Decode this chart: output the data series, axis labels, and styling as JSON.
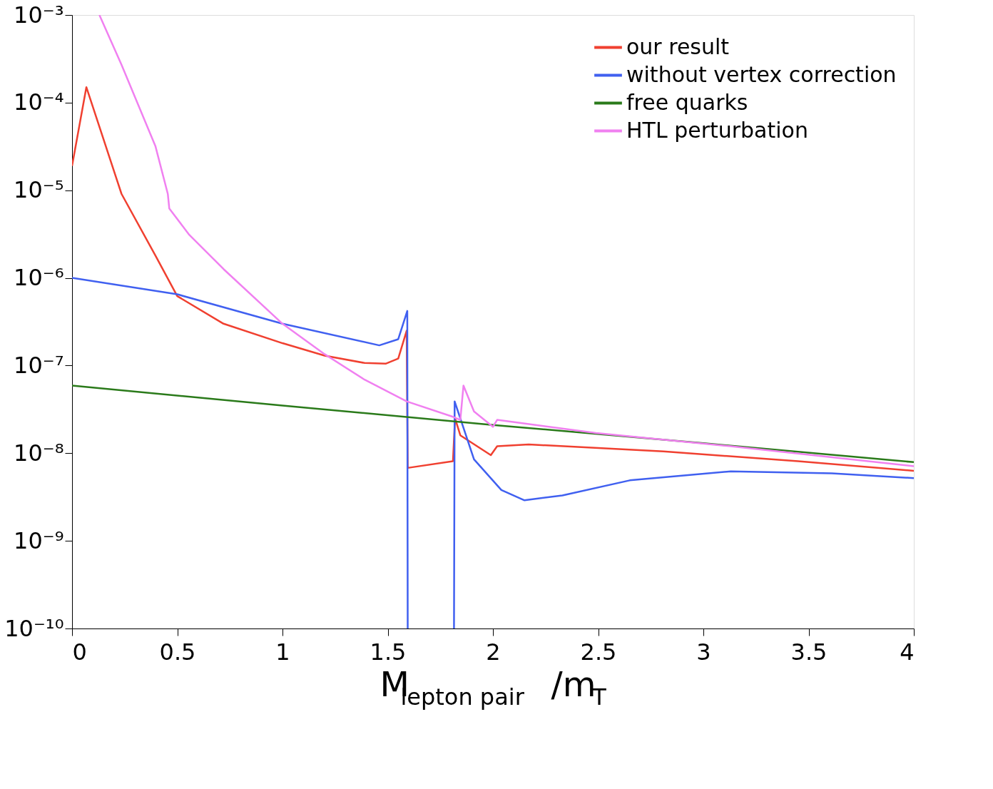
{
  "chart_data": {
    "type": "line",
    "xlabel": "M$_{lepton pair}$/m$_{T}$",
    "xlim": [
      0,
      4
    ],
    "xticks": [
      0,
      0.5,
      1,
      1.5,
      2,
      2.5,
      3,
      3.5,
      4
    ],
    "ylim": [
      1e-10,
      0.001
    ],
    "log": "y",
    "yticks": [
      {
        "value": 1e-10,
        "label": "10⁻¹⁰"
      },
      {
        "value": 1e-09,
        "label": "10⁻⁹"
      },
      {
        "value": 1e-08,
        "label": "10⁻⁸"
      },
      {
        "value": 1e-07,
        "label": "10⁻⁷"
      },
      {
        "value": 1e-06,
        "label": "10⁻⁶"
      },
      {
        "value": 1e-05,
        "label": "10⁻⁵"
      },
      {
        "value": 0.0001,
        "label": "10⁻⁴"
      },
      {
        "value": 0.001,
        "label": "10⁻³"
      }
    ],
    "grid": false,
    "legend": "top right",
    "line_style": "solid",
    "marker": "none",
    "series": [
      {
        "name": "our result",
        "color": "#f04030",
        "x": [
          0,
          0.068,
          0.235,
          0.396,
          0.5,
          0.72,
          1.0,
          1.2,
          1.39,
          1.49,
          1.55,
          1.59,
          1.595,
          1.81,
          1.82,
          1.845,
          1.99,
          2.02,
          2.17,
          2.81,
          3.45,
          4
        ],
        "values": [
          1.9e-05,
          0.00015,
          9.1e-06,
          1.8e-06,
          6.2e-07,
          3e-07,
          1.8e-07,
          1.3e-07,
          1.07e-07,
          1.05e-07,
          1.2e-07,
          2.5e-07,
          6.8e-09,
          8.1e-09,
          2.5e-08,
          1.6e-08,
          9.5e-09,
          1.2e-08,
          1.26e-08,
          1.05e-08,
          8.1e-09,
          6.3e-09
        ]
      },
      {
        "name": "without vertex correction",
        "color": "#4060f0",
        "x": [
          0,
          0.5,
          1.0,
          1.46,
          1.55,
          1.593,
          1.595,
          1.7,
          1.815,
          1.818,
          1.91,
          2.04,
          2.15,
          2.33,
          2.65,
          3.13,
          3.61,
          4
        ],
        "values": [
          1e-06,
          6.5e-07,
          3e-07,
          1.7e-07,
          2e-07,
          4.2e-07,
          1e-10,
          null,
          1e-10,
          3.9e-08,
          8.5e-09,
          3.8e-09,
          2.9e-09,
          3.3e-09,
          4.9e-09,
          6.2e-09,
          5.9e-09,
          5.2e-09
        ]
      },
      {
        "name": "free quarks",
        "color": "#2a7a1a",
        "x": [
          0,
          1,
          2,
          3,
          4
        ],
        "values": [
          5.9e-08,
          3.5e-08,
          2.1e-08,
          1.3e-08,
          7.9e-09
        ]
      },
      {
        "name": "HTL perturbation",
        "color": "#f080f0",
        "x": [
          0.13,
          0.235,
          0.396,
          0.455,
          0.462,
          0.557,
          0.72,
          1.0,
          1.2,
          1.39,
          1.59,
          1.81,
          1.845,
          1.86,
          1.91,
          2.0,
          2.02,
          2.49,
          3.13,
          4
        ],
        "values": [
          0.001,
          0.00027,
          3.2e-05,
          9.1e-06,
          6.2e-06,
          3.1e-06,
          1.26e-06,
          3e-07,
          1.35e-07,
          6.9e-08,
          3.9e-08,
          2.6e-08,
          2.4e-08,
          5.9e-08,
          3e-08,
          2e-08,
          2.4e-08,
          1.7e-08,
          1.2e-08,
          7.1e-09
        ]
      }
    ]
  }
}
